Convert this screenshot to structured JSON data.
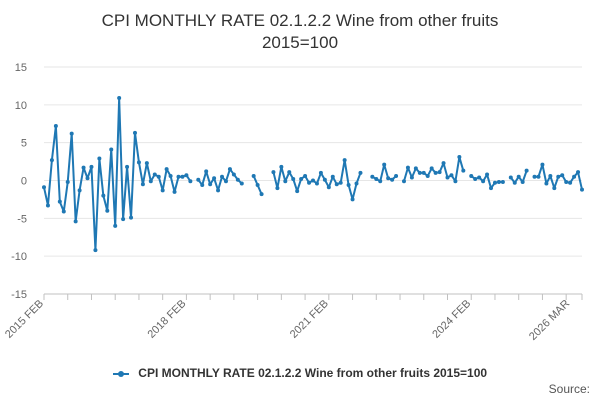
{
  "chart_data": {
    "type": "line",
    "title_line1": "CPI MONTHLY RATE 02.1.2.2 Wine from other fruits",
    "title_line2": "2015=100",
    "series": [
      {
        "name": "CPI MONTHLY RATE 02.1.2.2 Wine from other fruits 2015=100",
        "color": "#1f78b4",
        "start": {
          "year": 2015,
          "month": 2
        },
        "values": [
          -0.9,
          -3.3,
          2.7,
          7.2,
          -2.8,
          -4.1,
          -0.2,
          6.2,
          -5.4,
          -1.3,
          1.7,
          0.3,
          1.8,
          -9.2,
          2.9,
          -2.0,
          -4.0,
          4.1,
          -6.0,
          10.9,
          -5.1,
          1.8,
          -4.9,
          6.3,
          2.4,
          -0.5,
          2.3,
          -0.1,
          0.8,
          0.5,
          -1.3,
          1.5,
          0.6,
          -1.5,
          0.5,
          0.5,
          0.7,
          -0.1,
          null,
          0.1,
          -0.6,
          1.2,
          -0.5,
          0.3,
          -1.3,
          0.5,
          -0.1,
          1.5,
          0.8,
          0.1,
          -0.4,
          null,
          null,
          0.6,
          -0.6,
          -1.8,
          null,
          null,
          1.1,
          -1.0,
          1.8,
          -0.1,
          1.1,
          0.2,
          -1.4,
          0.2,
          0.6,
          -0.3,
          0.0,
          -0.4,
          1.0,
          0.1,
          -0.9,
          0.5,
          -0.5,
          -0.3,
          2.7,
          -0.6,
          -2.5,
          -0.4,
          1.0,
          null,
          null,
          0.5,
          0.2,
          -0.1,
          2.1,
          0.3,
          0.1,
          0.6,
          null,
          -0.1,
          1.7,
          0.4,
          1.6,
          1.0,
          1.0,
          0.6,
          1.6,
          1.0,
          1.1,
          2.3,
          0.4,
          0.7,
          -0.1,
          3.1,
          1.3,
          null,
          0.6,
          0.2,
          0.4,
          -0.1,
          0.8,
          -1.0,
          -0.3,
          -0.2,
          -0.2,
          null,
          0.4,
          -0.3,
          0.5,
          -0.2,
          1.3,
          null,
          0.5,
          0.5,
          2.1,
          -0.4,
          0.6,
          -1.0,
          0.5,
          0.7,
          -0.2,
          -0.3,
          0.5,
          1.1,
          -1.2
        ]
      }
    ],
    "x_ticks": [
      "2015 FEB",
      "2018 FEB",
      "2021 FEB",
      "2024 FEB",
      "2026 MAR"
    ],
    "y_ticks": [
      15,
      10,
      5,
      0,
      -5,
      -10,
      -15
    ],
    "ylim": [
      -15,
      15
    ],
    "grid": true,
    "legend": "bottom"
  },
  "credit": "Source:"
}
